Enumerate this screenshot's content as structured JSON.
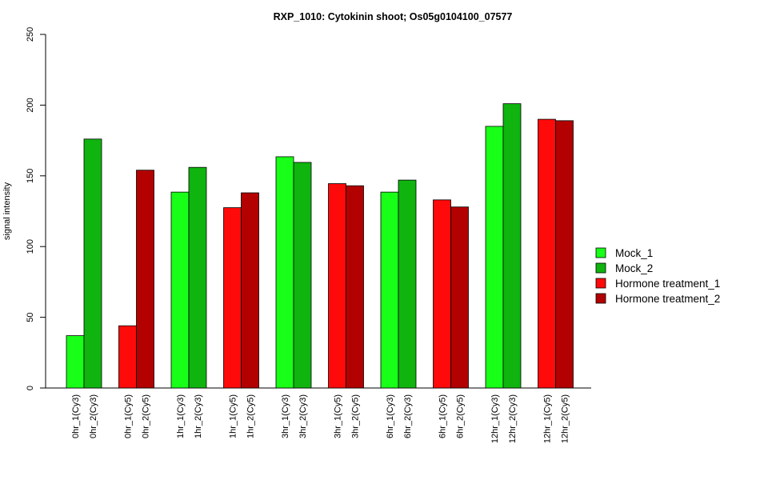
{
  "chart_data": {
    "type": "bar",
    "title": "RXP_1010: Cytokinin shoot; Os05g0104100_07577",
    "xlabel": "",
    "ylabel": "signal intensity",
    "ylim": [
      0,
      250
    ],
    "yticks": [
      0,
      50,
      100,
      150,
      200,
      250
    ],
    "grid": false,
    "legend_position": "right",
    "legend": [
      {
        "name": "Mock_1",
        "color": "#18ff18"
      },
      {
        "name": "Mock_2",
        "color": "#0fb40f"
      },
      {
        "name": "Hormone treatment_1",
        "color": "#ff0a0a"
      },
      {
        "name": "Hormone treatment_2",
        "color": "#b30000"
      }
    ],
    "bars": [
      {
        "label": "0hr_1(Cy3)",
        "value": 37,
        "color": "#18ff18"
      },
      {
        "label": "0hr_2(Cy3)",
        "value": 176,
        "color": "#0fb40f"
      },
      {
        "label": "0hr_1(Cy5)",
        "value": 44,
        "color": "#ff0a0a"
      },
      {
        "label": "0hr_2(Cy5)",
        "value": 154,
        "color": "#b30000"
      },
      {
        "label": "1hr_1(Cy3)",
        "value": 138.5,
        "color": "#18ff18"
      },
      {
        "label": "1hr_2(Cy3)",
        "value": 156,
        "color": "#0fb40f"
      },
      {
        "label": "1hr_1(Cy5)",
        "value": 127.5,
        "color": "#ff0a0a"
      },
      {
        "label": "1hr_2(Cy5)",
        "value": 138,
        "color": "#b30000"
      },
      {
        "label": "3hr_1(Cy3)",
        "value": 163.5,
        "color": "#18ff18"
      },
      {
        "label": "3hr_2(Cy3)",
        "value": 159.5,
        "color": "#0fb40f"
      },
      {
        "label": "3hr_1(Cy5)",
        "value": 144.5,
        "color": "#ff0a0a"
      },
      {
        "label": "3hr_2(Cy5)",
        "value": 143,
        "color": "#b30000"
      },
      {
        "label": "6hr_1(Cy3)",
        "value": 138.5,
        "color": "#18ff18"
      },
      {
        "label": "6hr_2(Cy3)",
        "value": 147,
        "color": "#0fb40f"
      },
      {
        "label": "6hr_1(Cy5)",
        "value": 133,
        "color": "#ff0a0a"
      },
      {
        "label": "6hr_2(Cy5)",
        "value": 128,
        "color": "#b30000"
      },
      {
        "label": "12hr_1(Cy3)",
        "value": 185,
        "color": "#18ff18"
      },
      {
        "label": "12hr_2(Cy3)",
        "value": 201,
        "color": "#0fb40f"
      },
      {
        "label": "12hr_1(Cy5)",
        "value": 190,
        "color": "#ff0a0a"
      },
      {
        "label": "12hr_2(Cy5)",
        "value": 189,
        "color": "#b30000"
      }
    ]
  }
}
